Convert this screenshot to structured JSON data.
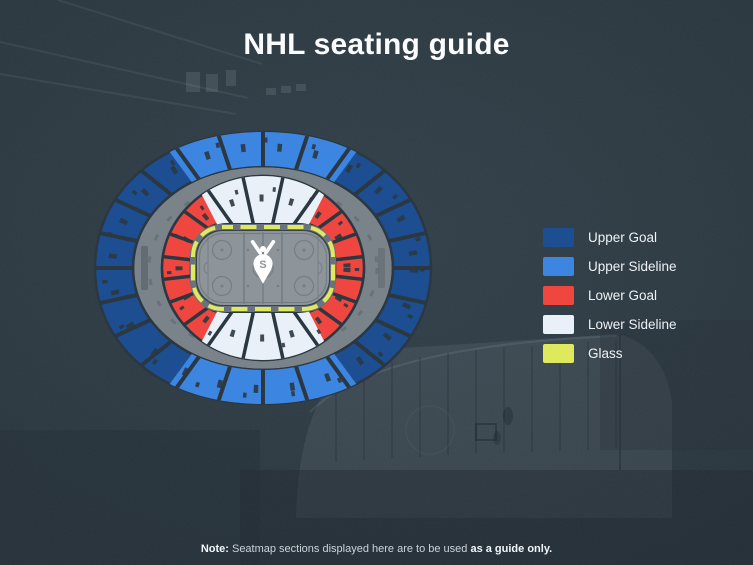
{
  "page": {
    "title": "NHL seating guide"
  },
  "note": {
    "bold_prefix": "Note:",
    "body": " Seatmap sections displayed here are to be used ",
    "bold_suffix": "as a guide only."
  },
  "colors": {
    "background": "#2b3841",
    "upper_goal": "#1d4e92",
    "upper_sideline": "#3c85e0",
    "lower_goal": "#ef4740",
    "lower_sideline": "#e9f0f7",
    "glass": "#dfe95e",
    "concourse": "#7b838a",
    "rink": "#8d959b"
  },
  "legend": {
    "items": [
      {
        "label": "Upper Goal",
        "color": "#1d4e92"
      },
      {
        "label": "Upper Sideline",
        "color": "#3c85e0"
      },
      {
        "label": "Lower Goal",
        "color": "#ef4740"
      },
      {
        "label": "Lower Sideline",
        "color": "#e9f0f7"
      },
      {
        "label": "Glass",
        "color": "#dfe95e"
      }
    ]
  },
  "seatmap": {
    "center_logo_letter": "S"
  }
}
